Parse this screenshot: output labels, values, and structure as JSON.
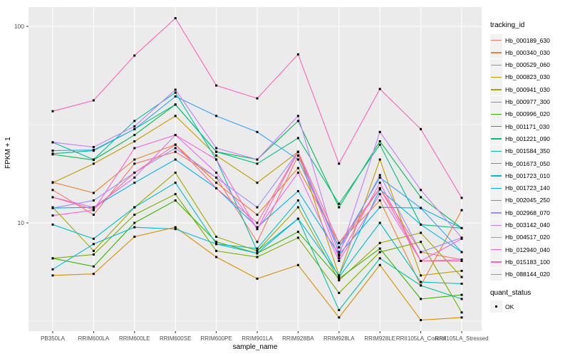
{
  "figure": {
    "y_axis_title": "FPKM + 1",
    "x_axis_title": "sample_name",
    "legend": {
      "tracking_title": "tracking_id",
      "quant_title": "quant_status",
      "quant_items": [
        {
          "label": "OK"
        }
      ]
    },
    "colors": {
      "panel_bg": "#EBEBEB",
      "grid_major": "#FFFFFF",
      "grid_minor": "#FFFFFF",
      "axis_text": "#4D4D4D",
      "tick_mark": "#333333",
      "legend_key_bg": "#F2F2F2",
      "point": "#000000"
    }
  },
  "chart_data": {
    "type": "line",
    "title": "",
    "xlabel": "sample_name",
    "ylabel": "FPKM + 1",
    "y_scale": "log10",
    "ylim": [
      2.8,
      126
    ],
    "y_ticks": [
      {
        "label": "100",
        "value": 100
      },
      {
        "label": "10",
        "value": 10
      }
    ],
    "y_minor_gridlines": [
      31.62,
      3.162
    ],
    "grid": true,
    "legend_position": "right",
    "point_shape": "small-black-square",
    "quant_status": "OK",
    "x_categories": [
      "PB350LA",
      "RRIM600LA",
      "RRIM600LE",
      "RRIM600SE",
      "RRIM600PE",
      "RRIM901LA",
      "RRIM928BA",
      "RRIM928LA",
      "RRIM928LE",
      "RRII105LA_Control",
      "RRII105LA_Stressed"
    ],
    "series": [
      {
        "name": "Hb_000189_630",
        "color": "#F8766D",
        "values": [
          14.7,
          11,
          20,
          23,
          17,
          8,
          22,
          7.5,
          15,
          7.1,
          6.5
        ]
      },
      {
        "name": "Hb_000340_030",
        "color": "#EA8331",
        "values": [
          16.1,
          14.2,
          21,
          25,
          16,
          11,
          19,
          7.9,
          13,
          4.8,
          11.6
        ]
      },
      {
        "name": "Hb_000529_060",
        "color": "#D89000",
        "values": [
          5.4,
          5.5,
          8.5,
          9.5,
          6.7,
          5.2,
          6.1,
          3.3,
          6.1,
          3.2,
          3.3
        ]
      },
      {
        "name": "Hb_000823_030",
        "color": "#C09B00",
        "values": [
          16,
          20,
          26,
          35,
          22,
          16,
          23,
          5.4,
          21,
          5.4,
          5.7
        ]
      },
      {
        "name": "Hb_000941_030",
        "color": "#A3A500",
        "values": [
          12,
          7.2,
          12,
          18,
          8.5,
          7.2,
          12,
          5.1,
          7.9,
          8.9,
          5.3
        ]
      },
      {
        "name": "Hb_000977_300",
        "color": "#7CAE00",
        "values": [
          6.6,
          6.9,
          11,
          14,
          7.2,
          6.7,
          8.4,
          4.4,
          7.1,
          8,
          3.5
        ]
      },
      {
        "name": "Hb_000996_020",
        "color": "#39B600",
        "values": [
          6.6,
          6,
          10,
          13,
          8,
          7,
          9,
          5.2,
          7.4,
          4.1,
          4.3
        ]
      },
      {
        "name": "Hb_001171_030",
        "color": "#00BB4E",
        "values": [
          22.3,
          20.9,
          28,
          40,
          23,
          21,
          33,
          12,
          26,
          13.5,
          9.4
        ]
      },
      {
        "name": "Hb_001221_090",
        "color": "#00BF7D",
        "values": [
          22.5,
          23.3,
          30,
          40,
          23,
          20,
          27,
          12.5,
          25,
          9.8,
          9.4
        ]
      },
      {
        "name": "Hb_001584_350",
        "color": "#00C1A3",
        "values": [
          25.7,
          21,
          33,
          46,
          21,
          7.2,
          10.5,
          3.6,
          6.6,
          4.8,
          4.1
        ]
      },
      {
        "name": "Hb_001673_050",
        "color": "#00BFC4",
        "values": [
          9.8,
          8.3,
          12,
          16,
          7.8,
          7.4,
          13,
          5.3,
          10,
          5,
          4.9
        ]
      },
      {
        "name": "Hb_001723_010",
        "color": "#00BAE0",
        "values": [
          5.8,
          7.8,
          9.5,
          9.3,
          7.8,
          7,
          10.5,
          5.4,
          14.8,
          9.8,
          7.1
        ]
      },
      {
        "name": "Hb_001723_140",
        "color": "#00B0F6",
        "values": [
          11.9,
          12,
          16,
          21,
          15,
          9.5,
          14.5,
          6.9,
          12,
          11.9,
          9.4
        ]
      },
      {
        "name": "Hb_002045_250",
        "color": "#35A2FF",
        "values": [
          23.3,
          23.5,
          30,
          44,
          35,
          29,
          21,
          7.5,
          17,
          11.9,
          7.1
        ]
      },
      {
        "name": "Hb_002968_070",
        "color": "#9590FF",
        "values": [
          11.9,
          13,
          18,
          24,
          17,
          12,
          23,
          7.1,
          17.5,
          7.1,
          8.4
        ]
      },
      {
        "name": "Hb_003142_040",
        "color": "#C77CFF",
        "values": [
          25.7,
          24.3,
          31,
          47.6,
          24,
          21,
          35,
          6.8,
          29,
          14.7,
          8.4
        ]
      },
      {
        "name": "Hb_004517_020",
        "color": "#E76BF3",
        "values": [
          13.5,
          12,
          17,
          28,
          18,
          9.3,
          18,
          6.4,
          14,
          6.4,
          6.5
        ]
      },
      {
        "name": "Hb_012940_040",
        "color": "#FA62DB",
        "values": [
          10.9,
          11.6,
          24,
          28,
          21,
          9.3,
          23,
          6.6,
          16,
          6.4,
          8.3
        ]
      },
      {
        "name": "Hb_015183_100",
        "color": "#FF62BC",
        "values": [
          37,
          42,
          71,
          110,
          50,
          43,
          72,
          20,
          48,
          30,
          13.4
        ]
      },
      {
        "name": "Hb_088144_020",
        "color": "#FF6A98",
        "values": [
          13.5,
          11.7,
          18,
          25,
          15,
          10,
          23,
          7.9,
          15,
          6.4,
          6.4
        ]
      }
    ]
  }
}
